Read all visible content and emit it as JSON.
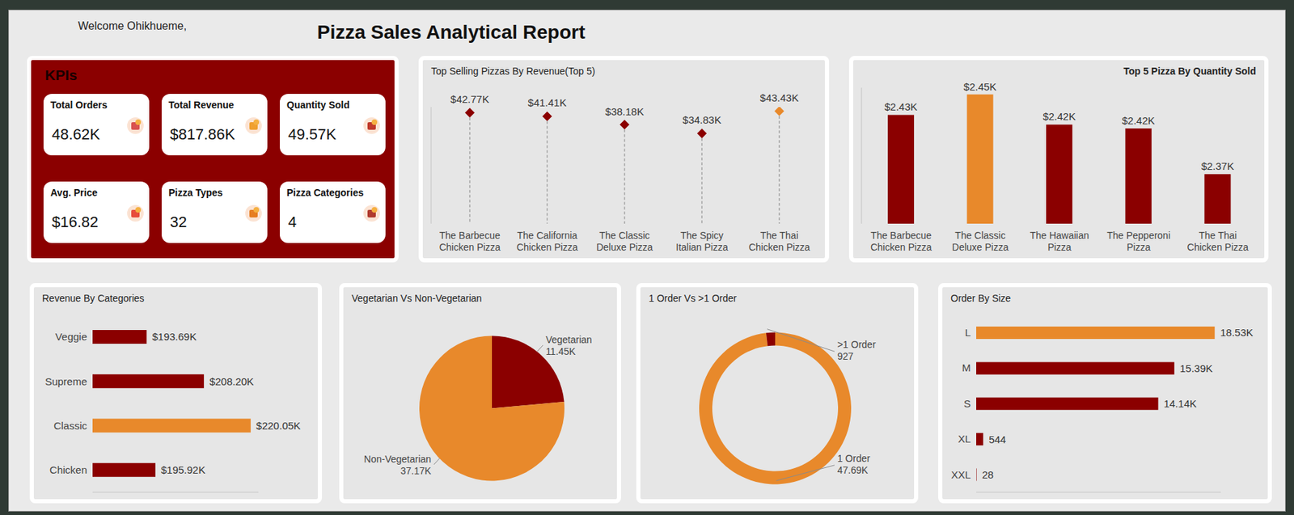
{
  "header": {
    "greeting": "Welcome Ohikhueme,",
    "title": "Pizza Sales Analytical Report"
  },
  "kpis": {
    "title": "KPIs",
    "items": [
      {
        "label": "Total Orders",
        "value": "48.62K"
      },
      {
        "label": "Total Revenue",
        "value": "$817.86K"
      },
      {
        "label": "Quantity Sold",
        "value": "49.57K"
      },
      {
        "label": "Avg. Price",
        "value": "$16.82"
      },
      {
        "label": "Pizza Types",
        "value": "32"
      },
      {
        "label": "Pizza Categories",
        "value": "4"
      }
    ]
  },
  "chart_data": [
    {
      "type": "lollipop",
      "title": "Top Selling Pizzas By Revenue(Top 5)",
      "categories": [
        "The Barbecue Chicken Pizza",
        "The California Chicken Pizza",
        "The Classic Deluxe Pizza",
        "The Spicy Italian Pizza",
        "The Thai Chicken Pizza"
      ],
      "values": [
        42.77,
        41.41,
        38.18,
        34.83,
        43.43
      ],
      "value_labels": [
        "$42.77K",
        "$41.41K",
        "$38.18K",
        "$34.83K",
        "$43.43K"
      ],
      "colors": [
        "#8B0000",
        "#8B0000",
        "#8B0000",
        "#8B0000",
        "#E8892B"
      ],
      "ylim": [
        0,
        45
      ],
      "data_labels": true,
      "tick_labels": "x",
      "marker": "diamond",
      "line_style": "dashed"
    },
    {
      "type": "bar",
      "title": "Top 5 Pizza By Quantity Sold",
      "categories": [
        "The Barbecue Chicken Pizza",
        "The Classic Deluxe Pizza",
        "The Hawaiian Pizza",
        "The Pepperoni Pizza",
        "The Thai Chicken Pizza"
      ],
      "values": [
        2.432,
        2.453,
        2.422,
        2.418,
        2.371
      ],
      "value_labels": [
        "$2.43K",
        "$2.45K",
        "$2.42K",
        "$2.42K",
        "$2.37K"
      ],
      "colors": [
        "#8B0000",
        "#E8892B",
        "#8B0000",
        "#8B0000",
        "#8B0000"
      ],
      "ylim": [
        2.32,
        2.46
      ],
      "data_labels": true,
      "tick_labels": "x"
    },
    {
      "type": "bar",
      "orientation": "horizontal",
      "title": "Revenue By Categories",
      "categories": [
        "Veggie",
        "Supreme",
        "Classic",
        "Chicken"
      ],
      "values": [
        193.69,
        208.2,
        220.05,
        195.92
      ],
      "value_labels": [
        "$193.69K",
        "$208.20K",
        "$220.05K",
        "$195.92K"
      ],
      "colors": [
        "#8B0000",
        "#8B0000",
        "#E8892B",
        "#8B0000"
      ],
      "xlim": [
        180,
        222
      ],
      "data_labels": true,
      "tick_labels": "y"
    },
    {
      "type": "pie",
      "title": "Vegetarian Vs Non-Vegetarian",
      "categories": [
        "Vegetarian",
        "Non-Vegetarian"
      ],
      "values": [
        11450,
        37170
      ],
      "value_labels": [
        "11.45K",
        "37.17K"
      ],
      "colors": [
        "#8B0000",
        "#E8892B"
      ],
      "data_labels": true
    },
    {
      "type": "donut",
      "title": "1 Order Vs >1 Order",
      "categories": [
        "1 Order",
        ">1 Order"
      ],
      "values": [
        47690,
        927
      ],
      "value_labels": [
        "47.69K",
        "927"
      ],
      "colors": [
        "#E8892B",
        "#8B0000"
      ],
      "data_labels": true
    },
    {
      "type": "bar",
      "orientation": "horizontal",
      "title": "Order By Size",
      "categories": [
        "L",
        "M",
        "S",
        "XL",
        "XXL"
      ],
      "values": [
        18530,
        15390,
        14140,
        544,
        28
      ],
      "value_labels": [
        "18.53K",
        "15.39K",
        "14.14K",
        "544",
        "28"
      ],
      "colors": [
        "#E8892B",
        "#8B0000",
        "#8B0000",
        "#8B0000",
        "#8B0000"
      ],
      "xlim": [
        0,
        19000
      ],
      "data_labels": true,
      "tick_labels": "y"
    }
  ]
}
